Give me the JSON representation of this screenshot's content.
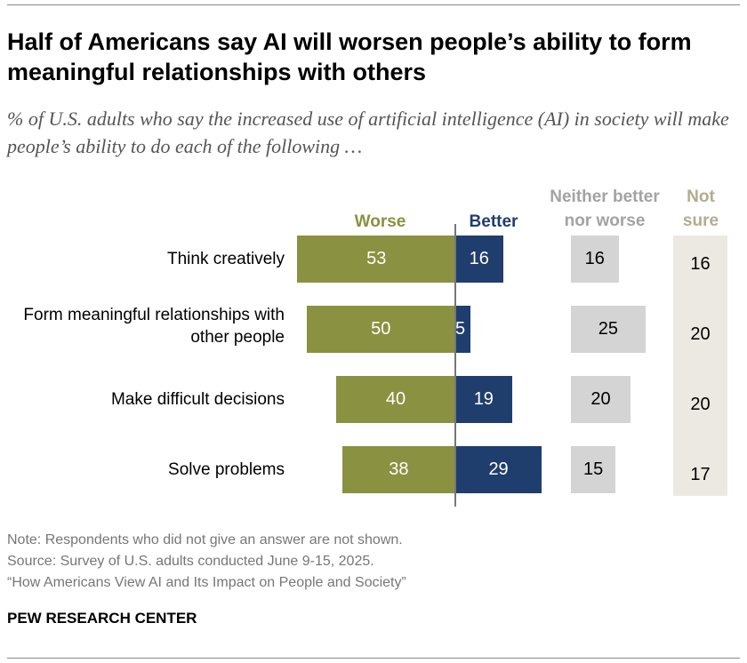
{
  "title": "Half of Americans say AI will worsen people’s ability to form meaningful relationships with others",
  "subtitle": "% of U.S. adults who say the increased use of artificial intelligence (AI) in society will make people’s ability to do each of the following …",
  "chart_data": {
    "type": "bar",
    "categories": [
      "Think creatively",
      "Form meaningful relationships with other people",
      "Make difficult decisions",
      "Solve problems"
    ],
    "series": [
      {
        "name": "Worse",
        "values": [
          53,
          50,
          40,
          38
        ],
        "color": "#8a9140"
      },
      {
        "name": "Better",
        "values": [
          16,
          5,
          19,
          29
        ],
        "color": "#1f3e6e"
      },
      {
        "name": "Neither better nor worse",
        "values": [
          16,
          25,
          20,
          15
        ],
        "color": "#d4d4d4"
      },
      {
        "name": "Not sure",
        "values": [
          16,
          20,
          20,
          17
        ],
        "color": "#ece9e2"
      }
    ],
    "header_colors": {
      "neither": "#a3a3a3",
      "not_sure": "#b5ab8e"
    }
  },
  "notes": [
    "Note: Respondents who did not give an answer are not shown.",
    "Source: Survey of U.S. adults conducted June 9-15, 2025.",
    "“How Americans View AI and Its Impact on People and Society”"
  ],
  "logo": "PEW RESEARCH CENTER"
}
